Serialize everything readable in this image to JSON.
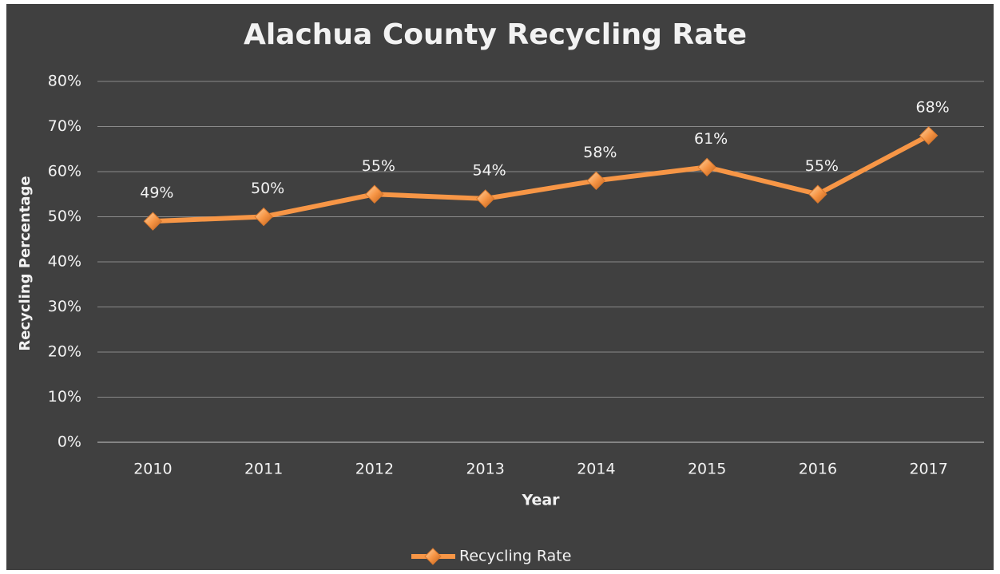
{
  "chart_data": {
    "type": "line",
    "title": "Alachua County Recycling Rate",
    "x_label": "Year",
    "y_label": "Recycling Percentage",
    "categories": [
      "2010",
      "2011",
      "2012",
      "2013",
      "2014",
      "2015",
      "2016",
      "2017"
    ],
    "series": [
      {
        "name": "Recycling Rate",
        "color": "#f79646",
        "values": [
          49,
          50,
          55,
          54,
          58,
          61,
          55,
          68
        ],
        "value_labels": [
          "49%",
          "50%",
          "55%",
          "54%",
          "58%",
          "61%",
          "55%",
          "68%"
        ]
      }
    ],
    "ylim": [
      0,
      80
    ],
    "yticks": [
      {
        "value": 0,
        "label": "0%"
      },
      {
        "value": 10,
        "label": "10%"
      },
      {
        "value": 20,
        "label": "20%"
      },
      {
        "value": 30,
        "label": "30%"
      },
      {
        "value": 40,
        "label": "40%"
      },
      {
        "value": 50,
        "label": "50%"
      },
      {
        "value": 60,
        "label": "60%"
      },
      {
        "value": 70,
        "label": "70%"
      },
      {
        "value": 80,
        "label": "80%"
      }
    ],
    "grid": true,
    "legend": "bottom"
  }
}
